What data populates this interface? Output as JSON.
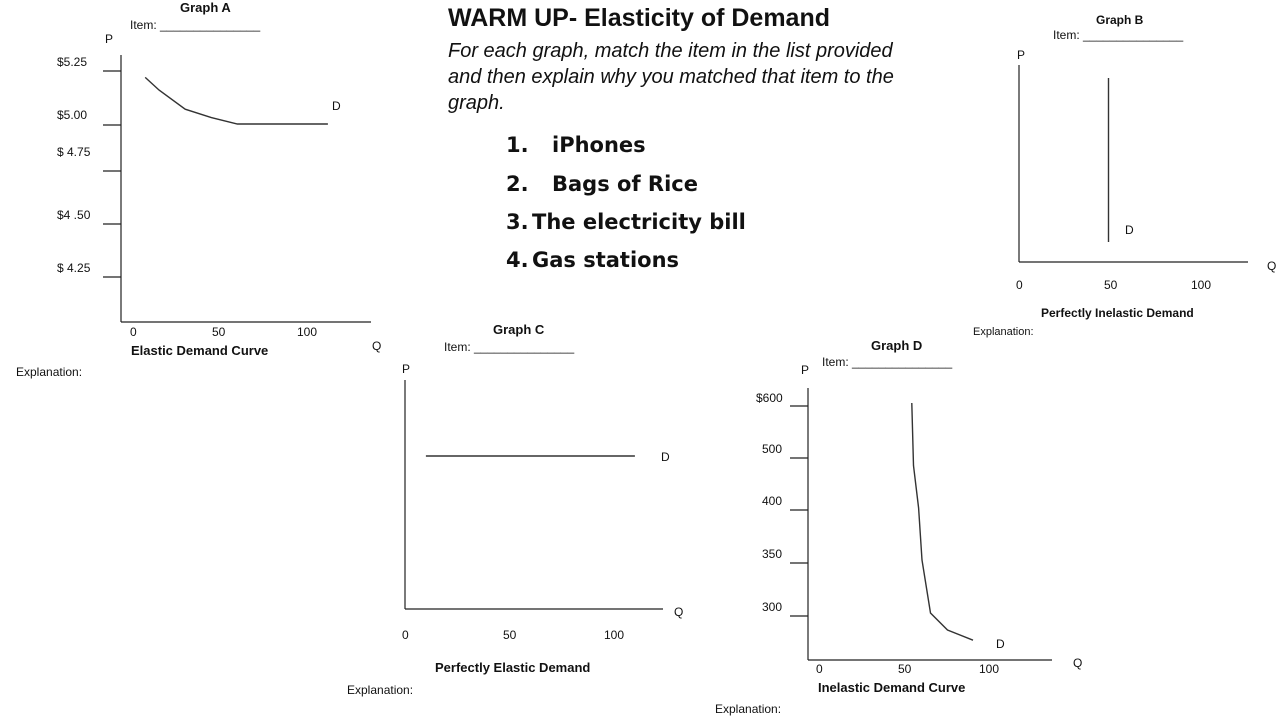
{
  "header": {
    "title": "WARM UP- Elasticity of Demand",
    "instructions": "For each graph, match the item in the list provided and then explain why you matched that item to the graph."
  },
  "items": [
    {
      "num": "1.",
      "label": "iPhones"
    },
    {
      "num": "2.",
      "label": "Bags of Rice"
    },
    {
      "num": "3.",
      "label": "The electricity bill"
    },
    {
      "num": "4.",
      "label": "Gas stations"
    }
  ],
  "common": {
    "item_label": "Item: _______________",
    "explanation_label": "Explanation:",
    "p_axis": "P",
    "q_axis": "Q",
    "curve_label": "D"
  },
  "chart_data": [
    {
      "id": "graph-a",
      "type": "line",
      "title": "Graph A",
      "caption": "Elastic Demand Curve",
      "xlabel": "Q",
      "ylabel": "P",
      "x_ticks": [
        "0",
        "50",
        "100"
      ],
      "y_ticks": [
        "$5.25",
        "$5.00",
        "$ 4.75",
        "$4 .50",
        "$ 4.25"
      ],
      "series": [
        {
          "x": [
            7,
            15,
            30,
            45,
            60,
            80,
            100,
            112
          ],
          "y": [
            5.22,
            5.16,
            5.07,
            5.03,
            5.0,
            5.0,
            5.0,
            5.0
          ]
        }
      ]
    },
    {
      "id": "graph-b",
      "type": "line",
      "title": "Graph B",
      "caption": "Perfectly Inelastic Demand",
      "xlabel": "Q",
      "ylabel": "P",
      "x_ticks": [
        "0",
        "50",
        "100"
      ],
      "series": [
        {
          "x": [
            50,
            50
          ]
        }
      ]
    },
    {
      "id": "graph-c",
      "type": "line",
      "title": "Graph C",
      "caption": "Perfectly Elastic Demand",
      "xlabel": "Q",
      "ylabel": "P",
      "x_ticks": [
        "0",
        "50",
        "100"
      ],
      "series": [
        {
          "x": [
            10,
            110
          ]
        }
      ]
    },
    {
      "id": "graph-d",
      "type": "line",
      "title": "Graph D",
      "caption": "Inelastic Demand Curve",
      "xlabel": "Q",
      "ylabel": "P",
      "x_ticks": [
        "0",
        "50",
        "100"
      ],
      "y_ticks": [
        "$600",
        "500",
        "400",
        "350",
        "300"
      ],
      "series": [
        {
          "x": [
            54,
            55,
            58,
            60,
            65,
            75,
            90
          ],
          "y": [
            600,
            480,
            400,
            350,
            300,
            280,
            268
          ]
        }
      ]
    }
  ]
}
